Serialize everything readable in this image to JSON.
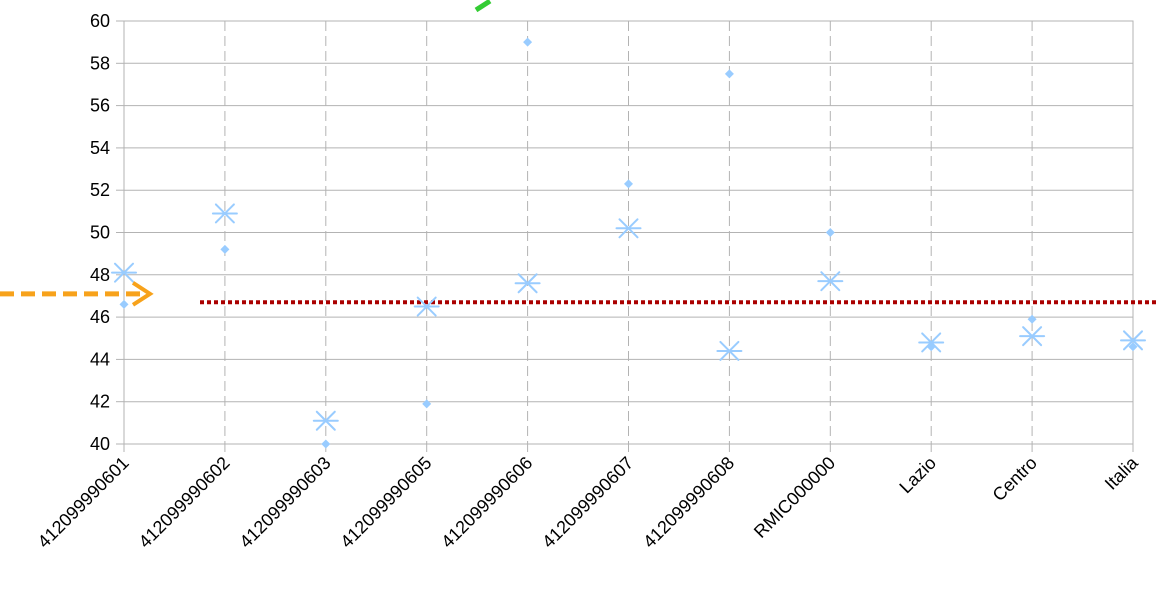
{
  "chart_data": {
    "type": "scatter",
    "categories": [
      "412099990601",
      "412099990602",
      "412099990603",
      "412099990605",
      "412099990606",
      "412099990607",
      "412099990608",
      "RMIC000000",
      "Lazio",
      "Centro",
      "Italia"
    ],
    "series": [
      {
        "marker": "diamond",
        "values": [
          46.6,
          49.2,
          40.0,
          41.9,
          59.0,
          52.3,
          57.5,
          50.0,
          44.6,
          45.9,
          44.6
        ],
        "color": "#99ccff"
      },
      {
        "marker": "asterisk",
        "values": [
          48.1,
          50.9,
          41.1,
          46.5,
          47.6,
          50.2,
          44.4,
          47.7,
          44.8,
          45.1,
          44.9
        ],
        "color": "#99ccff"
      }
    ],
    "reference_line": {
      "value": 46.7,
      "style": "dotted",
      "color": "#aa0000"
    },
    "annotations": [
      {
        "type": "dashed-arrow",
        "color": "#f7a21b",
        "points_at": 47.1
      },
      {
        "type": "line-fragment",
        "color": "#33cc33"
      }
    ],
    "ylim": [
      40,
      60
    ],
    "yticks": [
      40,
      42,
      44,
      46,
      48,
      50,
      52,
      54,
      56,
      58,
      60
    ],
    "grid": {
      "horizontal": true,
      "vertical": true,
      "vertical_style": "dashed"
    },
    "title": "",
    "xlabel": "",
    "ylabel": ""
  }
}
